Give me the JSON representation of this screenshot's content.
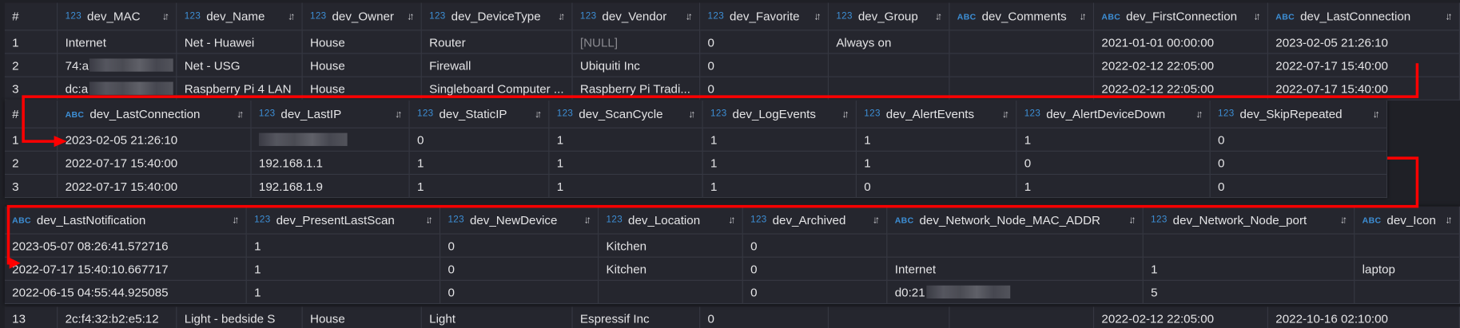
{
  "colors": {
    "background": "#25262e",
    "grid": "#363842",
    "text": "#e4e4e6",
    "type_badge": "#3d8fd6",
    "null_text": "#8a8a90",
    "annotation_arrow": "#ff0000"
  },
  "icons": {
    "sort": "sort-arrows-icon",
    "annotation": "red-arrow-annotation"
  },
  "sort_glyph": "↓↑",
  "panels": [
    {
      "id": "panel-1",
      "columns": [
        {
          "type": "",
          "name": "#"
        },
        {
          "type": "123",
          "name": "dev_MAC"
        },
        {
          "type": "123",
          "name": "dev_Name"
        },
        {
          "type": "123",
          "name": "dev_Owner"
        },
        {
          "type": "123",
          "name": "dev_DeviceType"
        },
        {
          "type": "123",
          "name": "dev_Vendor"
        },
        {
          "type": "123",
          "name": "dev_Favorite"
        },
        {
          "type": "123",
          "name": "dev_Group"
        },
        {
          "type": "ABC",
          "name": "dev_Comments"
        },
        {
          "type": "ABC",
          "name": "dev_FirstConnection"
        },
        {
          "type": "ABC",
          "name": "dev_LastConnection"
        }
      ],
      "rows": [
        [
          "1",
          "Internet",
          "Net - Huawei",
          "House",
          "Router",
          {
            "v": "[NULL]",
            "null": true
          },
          "0",
          "Always on",
          "",
          "2021-01-01 00:00:00",
          "2023-02-05 21:26:10"
        ],
        [
          "2",
          {
            "v": "74:a",
            "redacted": true
          },
          "Net - USG",
          "House",
          "Firewall",
          "Ubiquiti Inc",
          "0",
          "",
          "",
          "2022-02-12 22:05:00",
          "2022-07-17 15:40:00"
        ],
        [
          "3",
          {
            "v": "dc:a",
            "redacted": true
          },
          "Raspberry Pi 4 LAN",
          "House",
          "Singleboard Computer ...",
          "Raspberry Pi Tradi...",
          "0",
          "",
          "",
          "2022-02-12 22:05:00",
          "2022-07-17 15:40:00"
        ]
      ],
      "partial_row": [
        "13",
        "2c:f4:32:b2:e5:12",
        "Light - bedside S",
        "House",
        "Light",
        "Espressif Inc",
        "0",
        "",
        "",
        "2022-02-12 22:05:00",
        "2022-10-16 02:10:00"
      ]
    },
    {
      "id": "panel-2",
      "columns": [
        {
          "type": "",
          "name": "#"
        },
        {
          "type": "ABC",
          "name": "dev_LastConnection"
        },
        {
          "type": "123",
          "name": "dev_LastIP"
        },
        {
          "type": "123",
          "name": "dev_StaticIP"
        },
        {
          "type": "123",
          "name": "dev_ScanCycle"
        },
        {
          "type": "123",
          "name": "dev_LogEvents"
        },
        {
          "type": "123",
          "name": "dev_AlertEvents"
        },
        {
          "type": "123",
          "name": "dev_AlertDeviceDown"
        },
        {
          "type": "123",
          "name": "dev_SkipRepeated"
        }
      ],
      "rows": [
        [
          "1",
          "2023-02-05 21:26:10",
          {
            "v": "",
            "redacted": true
          },
          "0",
          "1",
          "1",
          "1",
          "1",
          "0"
        ],
        [
          "2",
          "2022-07-17 15:40:00",
          "192.168.1.1",
          "1",
          "1",
          "1",
          "1",
          "0",
          "0"
        ],
        [
          "3",
          "2022-07-17 15:40:00",
          "192.168.1.9",
          "1",
          "1",
          "1",
          "0",
          "1",
          "0"
        ]
      ]
    },
    {
      "id": "panel-3",
      "columns": [
        {
          "type": "ABC",
          "name": "dev_LastNotification"
        },
        {
          "type": "123",
          "name": "dev_PresentLastScan"
        },
        {
          "type": "123",
          "name": "dev_NewDevice"
        },
        {
          "type": "123",
          "name": "dev_Location"
        },
        {
          "type": "123",
          "name": "dev_Archived"
        },
        {
          "type": "ABC",
          "name": "dev_Network_Node_MAC_ADDR"
        },
        {
          "type": "123",
          "name": "dev_Network_Node_port"
        },
        {
          "type": "ABC",
          "name": "dev_Icon"
        }
      ],
      "rows": [
        [
          "2023-05-07 08:26:41.572716",
          "1",
          "0",
          "Kitchen",
          "0",
          "",
          "",
          ""
        ],
        [
          "2022-07-17 15:40:10.667717",
          "1",
          "0",
          "Kitchen",
          "0",
          "Internet",
          "1",
          "laptop"
        ],
        [
          "2022-06-15 04:55:44.925085",
          "1",
          "0",
          "",
          "0",
          {
            "v": "d0:21",
            "redacted": true
          },
          "5",
          ""
        ]
      ]
    }
  ]
}
